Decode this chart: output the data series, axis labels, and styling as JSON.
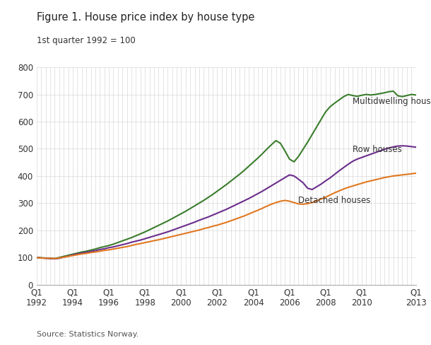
{
  "title": "Figure 1. House price index by house type",
  "subtitle": "1st quarter 1992 = 100",
  "source": "Source: Statistics Norway.",
  "ylim": [
    0,
    800
  ],
  "yticks": [
    0,
    100,
    200,
    300,
    400,
    500,
    600,
    700,
    800
  ],
  "x_tick_labels": [
    "Q1\n1992",
    "Q1\n1994",
    "Q1\n1996",
    "Q1\n1998",
    "Q1\n2000",
    "Q1\n2002",
    "Q1\n2004",
    "Q1\n2006",
    "Q1\n2008",
    "Q1\n2010",
    "Q1\n2013"
  ],
  "x_tick_positions": [
    0,
    8,
    16,
    24,
    32,
    40,
    48,
    56,
    64,
    72,
    84
  ],
  "colors": {
    "multidwelling": "#3a7d2c",
    "row": "#6b2d8b",
    "detached": "#e07820"
  },
  "multidwelling": [
    100,
    99,
    98,
    97,
    96,
    100,
    104,
    108,
    112,
    116,
    120,
    123,
    127,
    131,
    136,
    140,
    144,
    149,
    155,
    161,
    167,
    173,
    180,
    187,
    194,
    202,
    210,
    218,
    226,
    234,
    243,
    252,
    261,
    270,
    280,
    290,
    300,
    310,
    321,
    332,
    344,
    356,
    368,
    381,
    394,
    407,
    421,
    436,
    451,
    466,
    482,
    499,
    515,
    530,
    520,
    492,
    462,
    452,
    472,
    498,
    524,
    552,
    580,
    608,
    636,
    655,
    668,
    680,
    692,
    700,
    696,
    693,
    697,
    700,
    698,
    700,
    703,
    706,
    710,
    712,
    695,
    692,
    696,
    700,
    698
  ],
  "row": [
    100,
    98,
    97,
    96,
    95,
    97,
    101,
    105,
    109,
    113,
    116,
    119,
    122,
    125,
    129,
    132,
    136,
    139,
    143,
    147,
    151,
    156,
    160,
    164,
    169,
    174,
    179,
    184,
    189,
    194,
    200,
    206,
    212,
    218,
    224,
    230,
    237,
    243,
    249,
    256,
    263,
    270,
    277,
    285,
    293,
    301,
    309,
    317,
    326,
    335,
    344,
    354,
    364,
    374,
    384,
    394,
    404,
    400,
    388,
    375,
    355,
    350,
    360,
    370,
    382,
    393,
    406,
    419,
    431,
    443,
    454,
    462,
    468,
    474,
    480,
    486,
    492,
    498,
    503,
    507,
    510,
    511,
    510,
    508,
    506
  ],
  "detached": [
    100,
    98,
    97,
    97,
    96,
    98,
    101,
    104,
    107,
    110,
    113,
    115,
    118,
    120,
    123,
    126,
    128,
    131,
    134,
    137,
    140,
    144,
    148,
    151,
    155,
    158,
    162,
    165,
    169,
    173,
    177,
    181,
    185,
    189,
    193,
    197,
    201,
    206,
    210,
    215,
    219,
    224,
    229,
    235,
    241,
    247,
    253,
    260,
    267,
    274,
    281,
    289,
    296,
    302,
    307,
    310,
    307,
    302,
    297,
    296,
    298,
    302,
    308,
    315,
    322,
    330,
    338,
    345,
    352,
    358,
    363,
    368,
    373,
    378,
    382,
    386,
    390,
    394,
    397,
    400,
    402,
    404,
    406,
    408,
    410
  ]
}
